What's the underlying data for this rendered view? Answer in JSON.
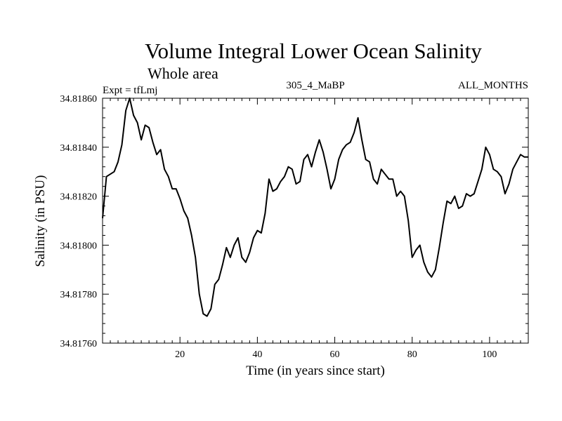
{
  "chart_data": {
    "type": "line",
    "title": "Volume Integral Lower Ocean Salinity",
    "subtitle": "Whole area",
    "annotations": {
      "left": "Expt = tfLmj",
      "center": "305_4_MaBP",
      "right": "ALL_MONTHS"
    },
    "xlabel": "Time (in years since start)",
    "ylabel": "Salinity (in PSU)",
    "xlim": [
      0,
      110
    ],
    "ylim": [
      34.8176,
      34.8186
    ],
    "xticks": [
      20,
      40,
      60,
      80,
      100
    ],
    "xtick_labels": [
      "20",
      "40",
      "60",
      "80",
      "100"
    ],
    "yticks": [
      34.8176,
      34.8178,
      34.818,
      34.8182,
      34.8184,
      34.8186
    ],
    "ytick_labels": [
      "34.81760",
      "34.81780",
      "34.81800",
      "34.81820",
      "34.81840",
      "34.81860"
    ],
    "series": [
      {
        "name": "salinity",
        "x": [
          0,
          1,
          2,
          3,
          4,
          5,
          6,
          7,
          8,
          9,
          10,
          11,
          12,
          13,
          14,
          15,
          16,
          17,
          18,
          19,
          20,
          21,
          22,
          23,
          24,
          25,
          26,
          27,
          28,
          29,
          30,
          31,
          32,
          33,
          34,
          35,
          36,
          37,
          38,
          39,
          40,
          41,
          42,
          43,
          44,
          45,
          46,
          47,
          48,
          49,
          50,
          51,
          52,
          53,
          54,
          55,
          56,
          57,
          58,
          59,
          60,
          61,
          62,
          63,
          64,
          65,
          66,
          67,
          68,
          69,
          70,
          71,
          72,
          73,
          74,
          75,
          76,
          77,
          78,
          79,
          80,
          81,
          82,
          83,
          84,
          85,
          86,
          87,
          88,
          89,
          90,
          91,
          92,
          93,
          94,
          95,
          96,
          97,
          98,
          99,
          100,
          101,
          102,
          103,
          104,
          105,
          106,
          107,
          108,
          109,
          110
        ],
        "values": [
          34.81811,
          34.81828,
          34.81829,
          34.8183,
          34.81834,
          34.81841,
          34.81855,
          34.8186,
          34.81853,
          34.8185,
          34.81843,
          34.81849,
          34.81848,
          34.81842,
          34.81837,
          34.81839,
          34.81831,
          34.81828,
          34.81823,
          34.81823,
          34.81819,
          34.81814,
          34.81811,
          34.81804,
          34.81795,
          34.8178,
          34.81772,
          34.81771,
          34.81774,
          34.81784,
          34.81786,
          34.81792,
          34.81799,
          34.81795,
          34.818,
          34.81803,
          34.81795,
          34.81793,
          34.81797,
          34.81803,
          34.81806,
          34.81805,
          34.81813,
          34.81827,
          34.81822,
          34.81823,
          34.81826,
          34.81828,
          34.81832,
          34.81831,
          34.81825,
          34.81826,
          34.81835,
          34.81837,
          34.81832,
          34.81838,
          34.81843,
          34.81838,
          34.81831,
          34.81823,
          34.81827,
          34.81835,
          34.81839,
          34.81841,
          34.81842,
          34.81846,
          34.81852,
          34.81843,
          34.81835,
          34.81834,
          34.81827,
          34.81825,
          34.81831,
          34.81829,
          34.81827,
          34.81827,
          34.8182,
          34.81822,
          34.8182,
          34.8181,
          34.81795,
          34.81798,
          34.818,
          34.81793,
          34.81789,
          34.81787,
          34.8179,
          34.81799,
          34.81809,
          34.81818,
          34.81817,
          34.8182,
          34.81815,
          34.81816,
          34.81821,
          34.8182,
          34.81821,
          34.81826,
          34.81831,
          34.8184,
          34.81837,
          34.81831,
          34.8183,
          34.81828,
          34.81821,
          34.81825,
          34.81831,
          34.81834,
          34.81837,
          34.81836,
          34.81836
        ]
      }
    ]
  }
}
